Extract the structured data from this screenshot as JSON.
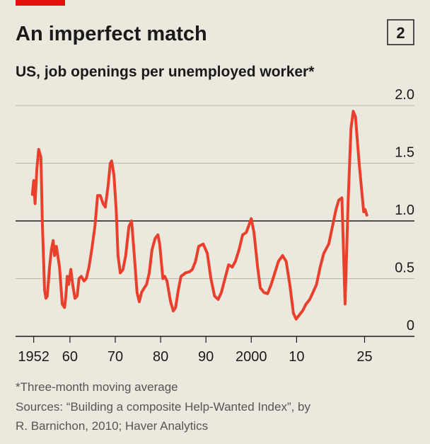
{
  "chart_data": {
    "type": "line",
    "chart_number": "2",
    "title": "An imperfect match",
    "subtitle": "US, job openings per unemployed worker*",
    "x": [
      1951.7,
      1952.0,
      1952.3,
      1952.7,
      1953.1,
      1953.6,
      1953.9,
      1954.4,
      1954.7,
      1955.0,
      1955.5,
      1955.9,
      1956.3,
      1956.6,
      1957.0,
      1957.7,
      1958.3,
      1958.8,
      1959.1,
      1959.4,
      1959.7,
      1960.2,
      1960.6,
      1961.1,
      1961.6,
      1962.0,
      1962.5,
      1963.1,
      1963.6,
      1964.2,
      1964.8,
      1965.5,
      1966.1,
      1966.7,
      1967.3,
      1967.8,
      1968.4,
      1968.9,
      1969.2,
      1969.7,
      1970.2,
      1970.6,
      1971.1,
      1971.7,
      1972.3,
      1973.0,
      1973.6,
      1974.2,
      1974.8,
      1975.3,
      1975.8,
      1976.4,
      1976.9,
      1977.5,
      1978.1,
      1978.8,
      1979.4,
      1979.8,
      1980.5,
      1980.9,
      1981.4,
      1982.2,
      1982.8,
      1983.3,
      1983.9,
      1984.5,
      1985.5,
      1986.4,
      1987.0,
      1987.7,
      1988.4,
      1989.4,
      1990.3,
      1991.1,
      1991.9,
      1992.7,
      1993.4,
      1994.2,
      1995.0,
      1995.8,
      1996.5,
      1997.3,
      1998.1,
      1998.9,
      2000.0,
      2000.6,
      2001.4,
      2002.0,
      2002.8,
      2003.6,
      2004.4,
      2005.2,
      2006.0,
      2006.9,
      2007.7,
      2008.5,
      2009.3,
      2009.9,
      2010.5,
      2011.3,
      2012.1,
      2012.9,
      2013.6,
      2014.4,
      2015.2,
      2016.0,
      2017.1,
      2017.9,
      2018.7,
      2019.3,
      2020.0,
      2020.7,
      2021.4,
      2022.0,
      2022.5,
      2023.0,
      2023.8,
      2024.4,
      2024.8,
      2025.1,
      2025.5
    ],
    "values": [
      1.23,
      1.35,
      1.15,
      1.45,
      1.62,
      1.55,
      1.0,
      0.4,
      0.33,
      0.35,
      0.6,
      0.75,
      0.83,
      0.7,
      0.78,
      0.6,
      0.28,
      0.25,
      0.35,
      0.52,
      0.45,
      0.58,
      0.45,
      0.33,
      0.35,
      0.5,
      0.52,
      0.48,
      0.5,
      0.6,
      0.75,
      0.95,
      1.22,
      1.22,
      1.15,
      1.12,
      1.3,
      1.5,
      1.52,
      1.4,
      1.1,
      0.7,
      0.55,
      0.58,
      0.7,
      0.95,
      1.0,
      0.7,
      0.38,
      0.3,
      0.38,
      0.42,
      0.45,
      0.55,
      0.75,
      0.85,
      0.88,
      0.8,
      0.5,
      0.52,
      0.48,
      0.3,
      0.22,
      0.25,
      0.4,
      0.52,
      0.55,
      0.56,
      0.58,
      0.65,
      0.78,
      0.8,
      0.72,
      0.5,
      0.35,
      0.32,
      0.38,
      0.5,
      0.62,
      0.6,
      0.65,
      0.75,
      0.88,
      0.9,
      1.02,
      0.9,
      0.6,
      0.42,
      0.38,
      0.37,
      0.45,
      0.55,
      0.65,
      0.7,
      0.65,
      0.45,
      0.2,
      0.15,
      0.18,
      0.22,
      0.28,
      0.32,
      0.38,
      0.45,
      0.6,
      0.72,
      0.8,
      0.95,
      1.1,
      1.18,
      1.2,
      0.28,
      1.2,
      1.8,
      1.95,
      1.9,
      1.5,
      1.25,
      1.08,
      1.1,
      1.05
    ],
    "color": "#e8402c",
    "xlim": [
      1948,
      2036
    ],
    "xticks": [
      1952,
      {
        "value": 1960,
        "label": "60"
      },
      {
        "value": 1970,
        "label": "70"
      },
      {
        "value": 1980,
        "label": "80"
      },
      {
        "value": 1990,
        "label": "90"
      },
      2000,
      {
        "value": 2010,
        "label": "10"
      },
      {
        "value": 2025,
        "label": "25"
      }
    ],
    "ylim": [
      0,
      2
    ],
    "yticks": [
      0,
      {
        "value": 0.5,
        "label": "0.5"
      },
      {
        "value": 1,
        "label": "1.0"
      },
      {
        "value": 1.5,
        "label": "1.5"
      },
      {
        "value": 2,
        "label": "2.0"
      }
    ],
    "grid": true,
    "reference_lines": [
      1
    ],
    "note": "*Three-month moving average",
    "source": [
      "Sources: “Building a composite Help-Wanted Index”, by",
      "R. Barnichon, 2010; Haver Analytics"
    ]
  }
}
